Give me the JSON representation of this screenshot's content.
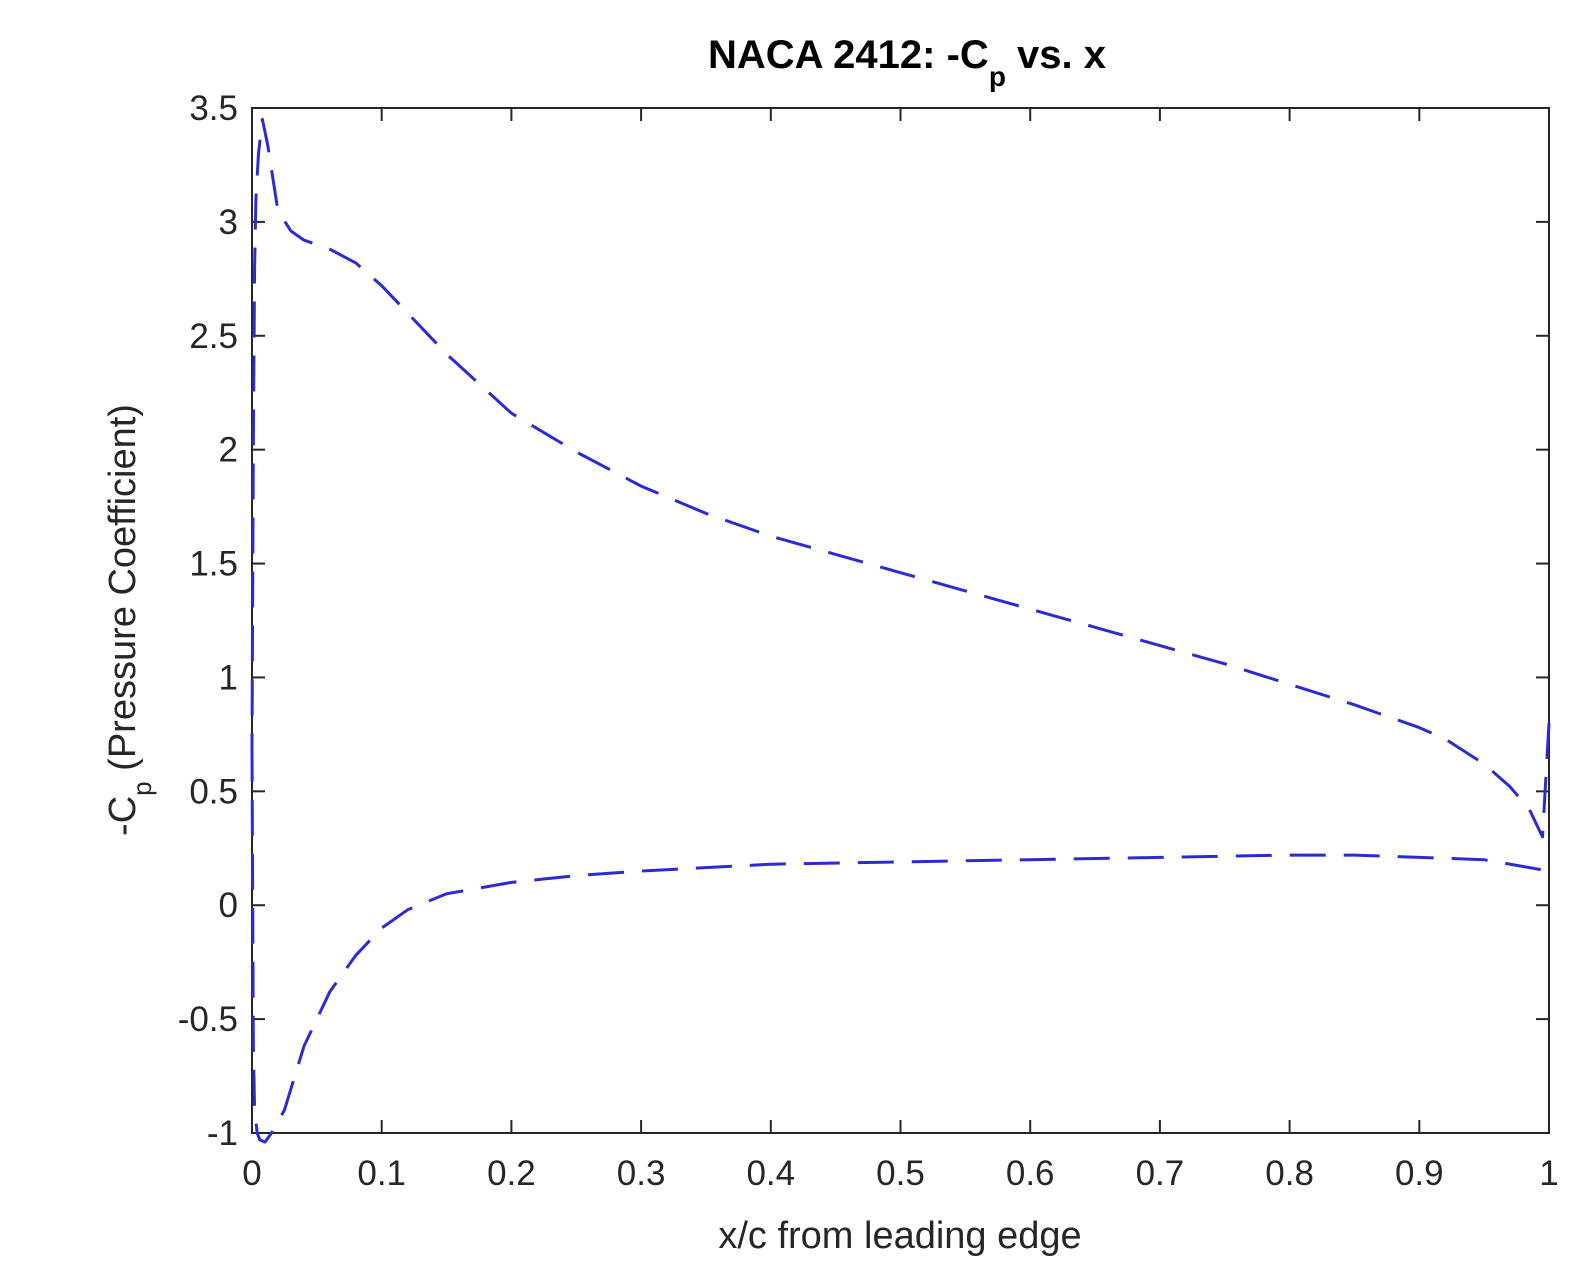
{
  "chart_data": {
    "type": "line",
    "title_main": "NACA 2412: -C",
    "title_sub": "p",
    "title_tail": " vs. x",
    "xlabel": "x/c from leading edge",
    "ylabel_main": "-C",
    "ylabel_sub": "p",
    "ylabel_tail": " (Pressure Coefficient)",
    "xlim": [
      0,
      1
    ],
    "ylim": [
      -1,
      3.5
    ],
    "xticks": [
      "0",
      "0.1",
      "0.2",
      "0.3",
      "0.4",
      "0.5",
      "0.6",
      "0.7",
      "0.8",
      "0.9",
      "1"
    ],
    "yticks": [
      "-1",
      "-0.5",
      "0",
      "0.5",
      "1",
      "1.5",
      "2",
      "2.5",
      "3",
      "3.5"
    ],
    "grid": false,
    "line_color": "#2b2bd4",
    "line_style": "dashed",
    "series": [
      {
        "x": [
          1.0,
          0.995,
          0.985,
          0.97,
          0.95,
          0.92,
          0.9,
          0.85,
          0.8,
          0.75,
          0.7,
          0.65,
          0.6,
          0.55,
          0.5,
          0.45,
          0.4,
          0.35,
          0.3,
          0.25,
          0.2,
          0.15,
          0.12,
          0.1,
          0.08,
          0.06,
          0.04,
          0.03,
          0.02,
          0.012,
          0.008,
          0.005,
          0.003,
          0.002,
          0.001,
          0.0
        ],
        "y": [
          0.8,
          0.3,
          0.42,
          0.52,
          0.62,
          0.73,
          0.78,
          0.88,
          0.97,
          1.06,
          1.14,
          1.22,
          1.3,
          1.38,
          1.46,
          1.54,
          1.62,
          1.72,
          1.84,
          1.99,
          2.16,
          2.42,
          2.6,
          2.72,
          2.82,
          2.88,
          2.92,
          2.96,
          3.05,
          3.34,
          3.45,
          3.3,
          3.1,
          2.8,
          2.0,
          0.7
        ]
      },
      {
        "x": [
          0.0,
          0.001,
          0.002,
          0.004,
          0.006,
          0.01,
          0.015,
          0.025,
          0.04,
          0.06,
          0.08,
          0.1,
          0.12,
          0.15,
          0.2,
          0.25,
          0.3,
          0.4,
          0.5,
          0.6,
          0.7,
          0.8,
          0.85,
          0.9,
          0.95,
          0.98,
          1.0
        ],
        "y": [
          0.7,
          -0.6,
          -0.9,
          -1.0,
          -1.03,
          -1.04,
          -1.0,
          -0.9,
          -0.62,
          -0.38,
          -0.22,
          -0.1,
          -0.02,
          0.05,
          0.1,
          0.13,
          0.15,
          0.18,
          0.19,
          0.2,
          0.21,
          0.22,
          0.22,
          0.21,
          0.2,
          0.17,
          0.15
        ]
      }
    ]
  }
}
